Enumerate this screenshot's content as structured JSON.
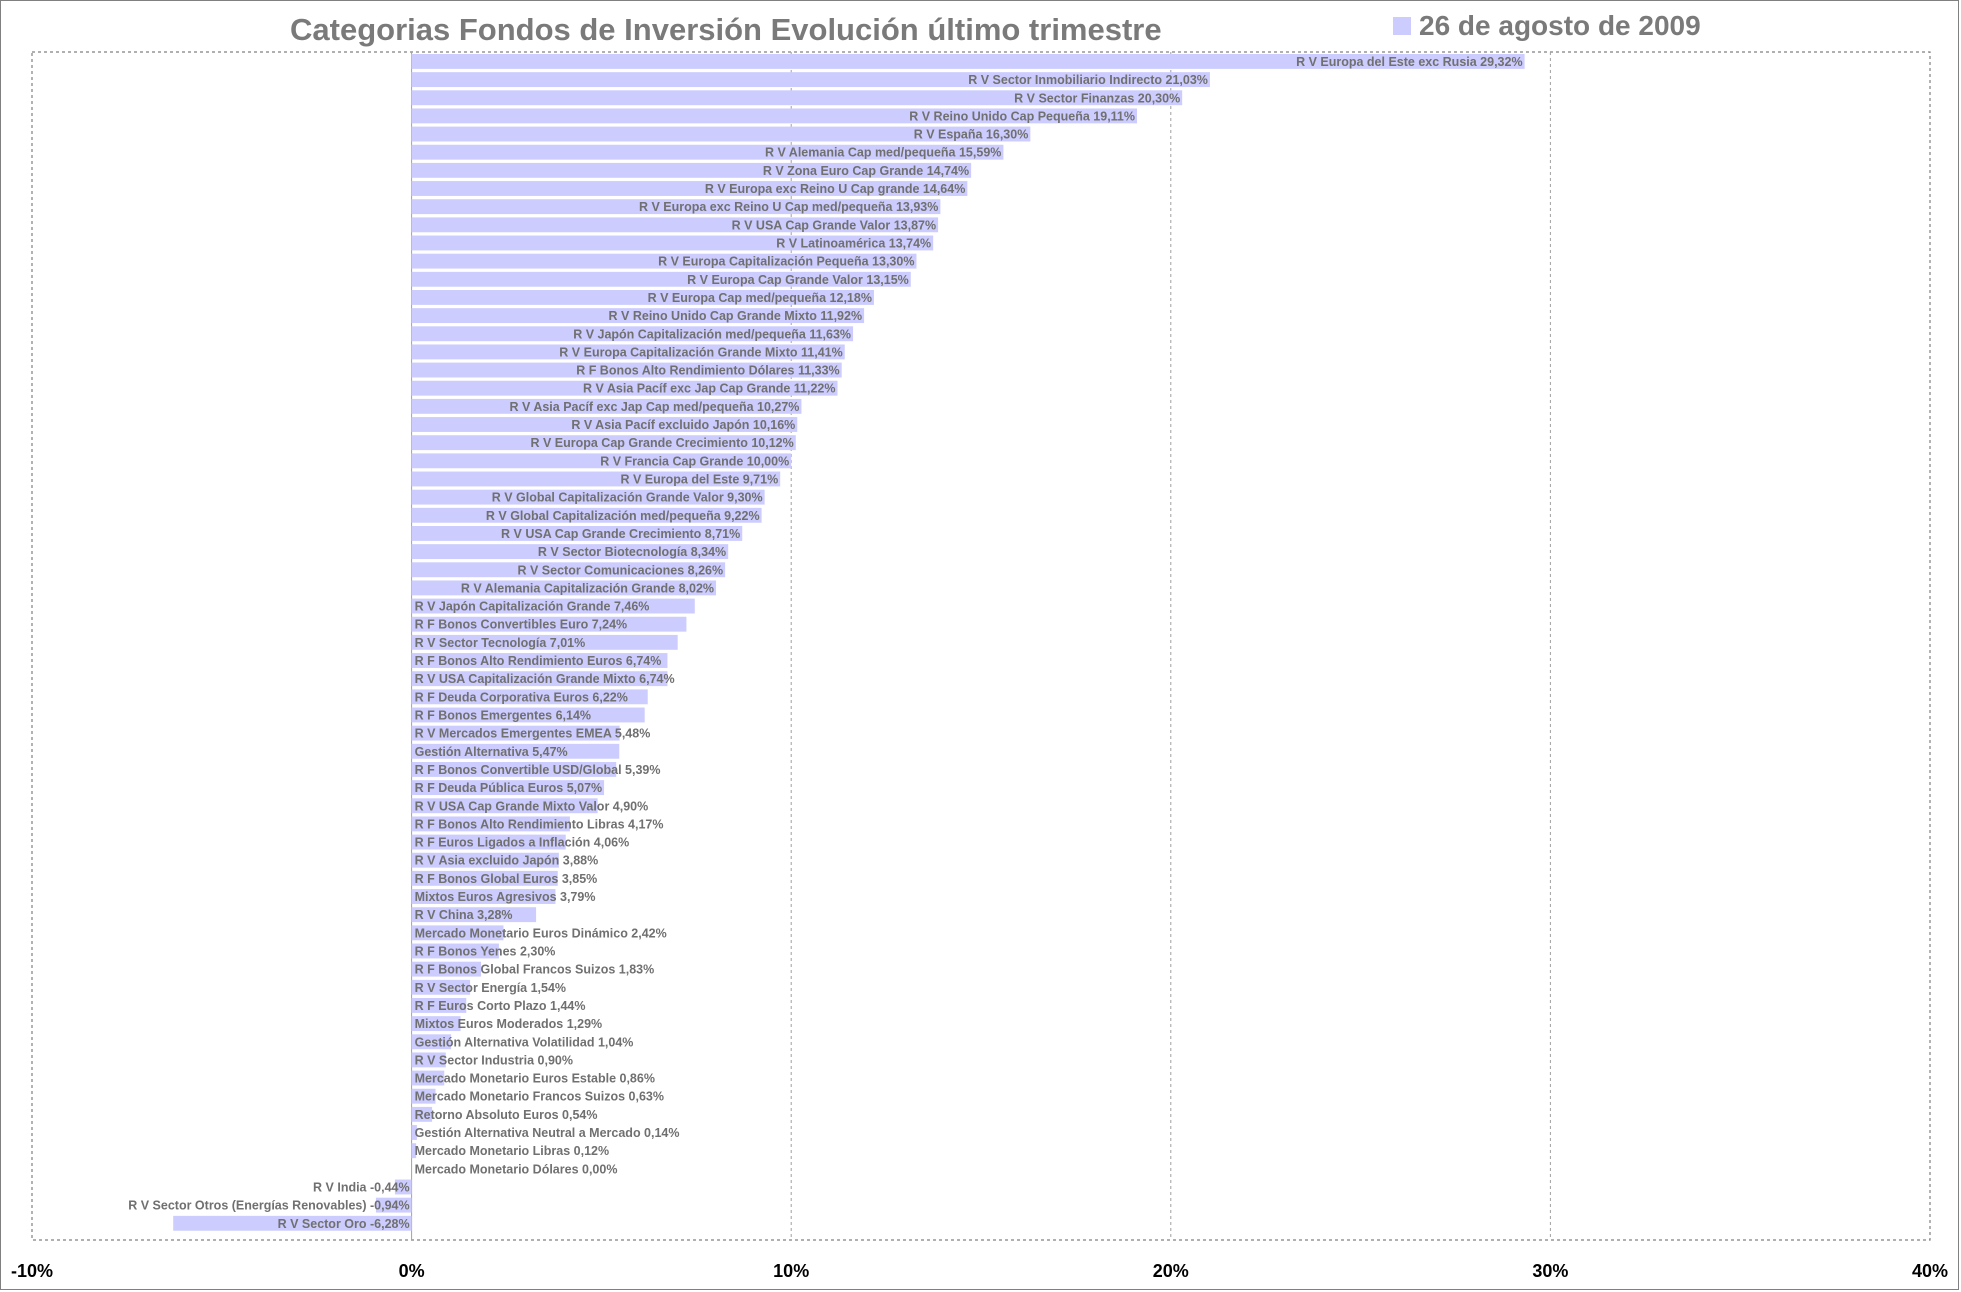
{
  "title": "Categorias Fondos de Inversión Evolución último trimestre",
  "legend_label": "26 de agosto de 2009",
  "colors": {
    "bar": "#ccccff",
    "label": "#707070",
    "title": "#7a7a7a",
    "grid": "#a0a0a0"
  },
  "chart_data": {
    "type": "bar",
    "orientation": "horizontal",
    "title": "Categorias Fondos de Inversión Evolución último trimestre",
    "legend": {
      "entries": [
        "26 de agosto de 2009"
      ],
      "placement": "top-right"
    },
    "xlim": [
      -10,
      40
    ],
    "x_ticks": [
      -10,
      0,
      10,
      20,
      30,
      40
    ],
    "x_tick_labels": [
      "-10%",
      "0%",
      "10%",
      "20%",
      "30%",
      "40%"
    ],
    "grid": "vertical dashed",
    "bars": [
      {
        "label": "R V Europa del Este exc Rusia 29,32%",
        "value": 29.32
      },
      {
        "label": "R V Sector Inmobiliario Indirecto 21,03%",
        "value": 21.03
      },
      {
        "label": "R V Sector Finanzas 20,30%",
        "value": 20.3
      },
      {
        "label": "R V Reino Unido Cap Pequeña 19,11%",
        "value": 19.11
      },
      {
        "label": "R V España 16,30%",
        "value": 16.3
      },
      {
        "label": "R V Alemania Cap med/pequeña 15,59%",
        "value": 15.59
      },
      {
        "label": "R V Zona Euro Cap Grande 14,74%",
        "value": 14.74
      },
      {
        "label": "R V Europa exc Reino U Cap grande 14,64%",
        "value": 14.64
      },
      {
        "label": "R V Europa exc Reino U Cap med/pequeña 13,93%",
        "value": 13.93
      },
      {
        "label": "R V USA Cap Grande Valor 13,87%",
        "value": 13.87
      },
      {
        "label": "R V Latinoamérica 13,74%",
        "value": 13.74
      },
      {
        "label": "R V Europa Capitalización Pequeña 13,30%",
        "value": 13.3
      },
      {
        "label": "R V Europa Cap Grande Valor 13,15%",
        "value": 13.15
      },
      {
        "label": "R V Europa Cap med/pequeña 12,18%",
        "value": 12.18
      },
      {
        "label": "R V Reino Unido Cap Grande Mixto 11,92%",
        "value": 11.92
      },
      {
        "label": "R V Japón Capitalización med/pequeña 11,63%",
        "value": 11.63
      },
      {
        "label": "R V Europa Capitalización Grande Mixto 11,41%",
        "value": 11.41
      },
      {
        "label": "R F Bonos Alto Rendimiento Dólares 11,33%",
        "value": 11.33
      },
      {
        "label": "R V Asia Pacíf exc Jap Cap Grande 11,22%",
        "value": 11.22
      },
      {
        "label": "R V Asia Pacíf exc Jap Cap med/pequeña 10,27%",
        "value": 10.27
      },
      {
        "label": "R V Asia Pacíf excluido Japón 10,16%",
        "value": 10.16
      },
      {
        "label": "R V Europa Cap Grande Crecimiento 10,12%",
        "value": 10.12
      },
      {
        "label": "R V Francia Cap Grande 10,00%",
        "value": 10.0
      },
      {
        "label": "R V Europa del Este 9,71%",
        "value": 9.71
      },
      {
        "label": "R V Global Capitalización Grande Valor 9,30%",
        "value": 9.3
      },
      {
        "label": "R V Global Capitalización med/pequeña 9,22%",
        "value": 9.22
      },
      {
        "label": "R V USA Cap Grande Crecimiento 8,71%",
        "value": 8.71
      },
      {
        "label": "R V Sector Biotecnología 8,34%",
        "value": 8.34
      },
      {
        "label": "R V Sector Comunicaciones 8,26%",
        "value": 8.26
      },
      {
        "label": "R V Alemania Capitalización Grande 8,02%",
        "value": 8.02
      },
      {
        "label": "R V Japón Capitalización Grande 7,46%",
        "value": 7.46
      },
      {
        "label": "R F Bonos Convertibles Euro 7,24%",
        "value": 7.24
      },
      {
        "label": "R V Sector Tecnología 7,01%",
        "value": 7.01
      },
      {
        "label": "R F Bonos Alto Rendimiento Euros 6,74%",
        "value": 6.74
      },
      {
        "label": "R V USA Capitalización Grande Mixto 6,74%",
        "value": 6.74
      },
      {
        "label": "R F Deuda Corporativa Euros 6,22%",
        "value": 6.22
      },
      {
        "label": "R F Bonos Emergentes 6,14%",
        "value": 6.14
      },
      {
        "label": "R V Mercados Emergentes EMEA 5,48%",
        "value": 5.48
      },
      {
        "label": "Gestión Alternativa 5,47%",
        "value": 5.47
      },
      {
        "label": "R F Bonos Convertible USD/Global 5,39%",
        "value": 5.39
      },
      {
        "label": "R F Deuda Pública Euros 5,07%",
        "value": 5.07
      },
      {
        "label": "R V USA Cap Grande Mixto Valor 4,90%",
        "value": 4.9
      },
      {
        "label": "R F Bonos Alto Rendimiento Libras 4,17%",
        "value": 4.17
      },
      {
        "label": "R F Euros Ligados a Inflación 4,06%",
        "value": 4.06
      },
      {
        "label": "R V Asia excluido Japón 3,88%",
        "value": 3.88
      },
      {
        "label": "R F Bonos Global Euros 3,85%",
        "value": 3.85
      },
      {
        "label": "Mixtos Euros Agresivos 3,79%",
        "value": 3.79
      },
      {
        "label": "R V China 3,28%",
        "value": 3.28
      },
      {
        "label": "Mercado Monetario Euros Dinámico 2,42%",
        "value": 2.42
      },
      {
        "label": "R F Bonos Yenes 2,30%",
        "value": 2.3
      },
      {
        "label": "R F Bonos Global Francos Suizos 1,83%",
        "value": 1.83
      },
      {
        "label": "R V Sector Energía 1,54%",
        "value": 1.54
      },
      {
        "label": "R F Euros Corto Plazo 1,44%",
        "value": 1.44
      },
      {
        "label": "Mixtos Euros Moderados 1,29%",
        "value": 1.29
      },
      {
        "label": "Gestión Alternativa Volatilidad 1,04%",
        "value": 1.04
      },
      {
        "label": "R V Sector Industria 0,90%",
        "value": 0.9
      },
      {
        "label": "Mercado Monetario Euros Estable 0,86%",
        "value": 0.86
      },
      {
        "label": "Mercado Monetario Francos Suizos 0,63%",
        "value": 0.63
      },
      {
        "label": "Retorno Absoluto Euros 0,54%",
        "value": 0.54
      },
      {
        "label": "Gestión Alternativa Neutral a Mercado 0,14%",
        "value": 0.14
      },
      {
        "label": "Mercado Monetario Libras 0,12%",
        "value": 0.12
      },
      {
        "label": "Mercado Monetario Dólares 0,00%",
        "value": 0.0
      },
      {
        "label": "R V India -0,44%",
        "value": -0.44
      },
      {
        "label": "R V Sector Otros (Energías Renovables) -0,94%",
        "value": -0.94
      },
      {
        "label": "R V Sector Oro -6,28%",
        "value": -6.28
      }
    ]
  }
}
